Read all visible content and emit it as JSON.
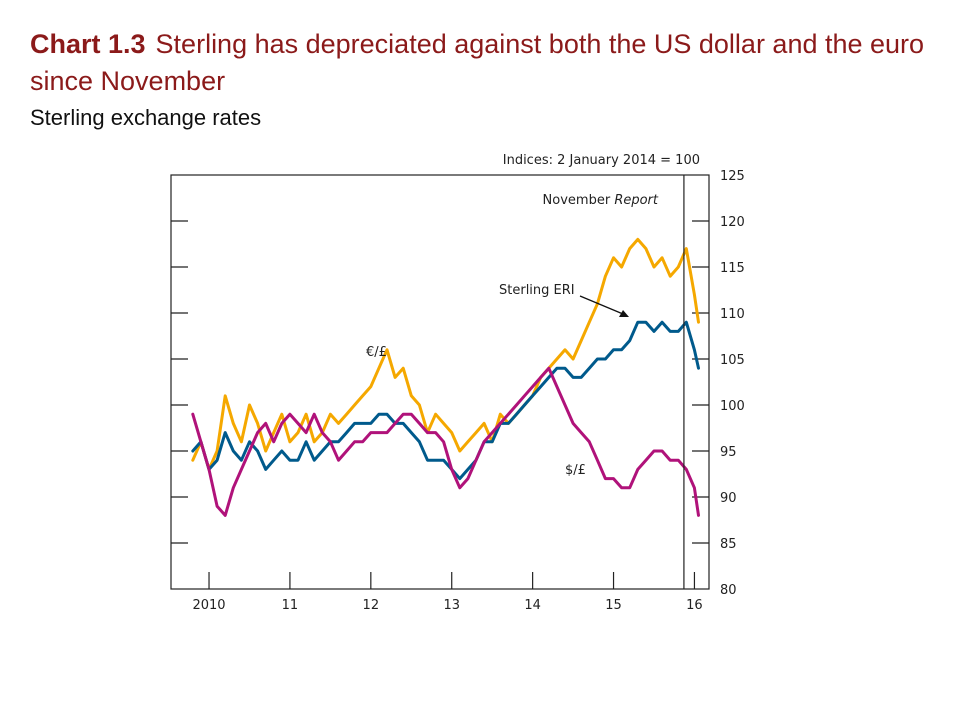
{
  "header": {
    "chart_number": "Chart 1.3",
    "title": "Sterling has depreciated against both the US dollar and the euro since November",
    "subtitle": "Sterling exchange rates"
  },
  "colors": {
    "euro": "#f5a800",
    "eri": "#005a8c",
    "dollar": "#b0127a",
    "title": "#8b1a1a"
  },
  "chart_data": {
    "type": "line",
    "units_label": "Indices: 2 January 2014 = 100",
    "x_ticks": [
      "2010",
      "11",
      "12",
      "13",
      "14",
      "15",
      "16"
    ],
    "x_tick_values": [
      2010,
      2011,
      2012,
      2013,
      2014,
      2015,
      2016
    ],
    "xlim": [
      2009.53,
      2016.18
    ],
    "ylim": [
      80,
      125
    ],
    "y_ticks": [
      125,
      120,
      115,
      110,
      105,
      100,
      95,
      90,
      85,
      80
    ],
    "y_axis_side": "right",
    "vline": {
      "x": 2015.87,
      "label_prefix": "November",
      "label_italic": "Report"
    },
    "annotations": [
      {
        "text": "€/£",
        "series": "euro"
      },
      {
        "text": "Sterling ERI",
        "series": "eri"
      },
      {
        "text": "$/£",
        "series": "dollar"
      }
    ],
    "series": [
      {
        "key": "euro",
        "name": "€/£",
        "x": [
          2009.8,
          2009.9,
          2010.0,
          2010.1,
          2010.2,
          2010.3,
          2010.4,
          2010.5,
          2010.6,
          2010.7,
          2010.8,
          2010.9,
          2011.0,
          2011.1,
          2011.2,
          2011.3,
          2011.4,
          2011.5,
          2011.6,
          2011.7,
          2011.8,
          2011.9,
          2012.0,
          2012.1,
          2012.2,
          2012.3,
          2012.4,
          2012.5,
          2012.6,
          2012.7,
          2012.8,
          2012.9,
          2013.0,
          2013.1,
          2013.2,
          2013.3,
          2013.4,
          2013.5,
          2013.6,
          2013.7,
          2013.8,
          2013.9,
          2014.0,
          2014.1,
          2014.2,
          2014.3,
          2014.4,
          2014.5,
          2014.6,
          2014.7,
          2014.8,
          2014.9,
          2015.0,
          2015.1,
          2015.2,
          2015.3,
          2015.4,
          2015.5,
          2015.6,
          2015.7,
          2015.8,
          2015.9,
          2016.0,
          2016.05
        ],
        "values": [
          94,
          96,
          93,
          95,
          101,
          98,
          96,
          100,
          98,
          95,
          97,
          99,
          96,
          97,
          99,
          96,
          97,
          99,
          98,
          99,
          100,
          101,
          102,
          104,
          106,
          103,
          104,
          101,
          100,
          97,
          99,
          98,
          97,
          95,
          96,
          97,
          98,
          96,
          99,
          98,
          99,
          100,
          101,
          103,
          104,
          105,
          106,
          105,
          107,
          109,
          111,
          114,
          116,
          115,
          117,
          118,
          117,
          115,
          116,
          114,
          115,
          117,
          112,
          109
        ]
      },
      {
        "key": "eri",
        "name": "Sterling ERI",
        "x": [
          2009.8,
          2009.9,
          2010.0,
          2010.1,
          2010.2,
          2010.3,
          2010.4,
          2010.5,
          2010.6,
          2010.7,
          2010.8,
          2010.9,
          2011.0,
          2011.1,
          2011.2,
          2011.3,
          2011.4,
          2011.5,
          2011.6,
          2011.7,
          2011.8,
          2011.9,
          2012.0,
          2012.1,
          2012.2,
          2012.3,
          2012.4,
          2012.5,
          2012.6,
          2012.7,
          2012.8,
          2012.9,
          2013.0,
          2013.1,
          2013.2,
          2013.3,
          2013.4,
          2013.5,
          2013.6,
          2013.7,
          2013.8,
          2013.9,
          2014.0,
          2014.1,
          2014.2,
          2014.3,
          2014.4,
          2014.5,
          2014.6,
          2014.7,
          2014.8,
          2014.9,
          2015.0,
          2015.1,
          2015.2,
          2015.3,
          2015.4,
          2015.5,
          2015.6,
          2015.7,
          2015.8,
          2015.9,
          2016.0,
          2016.05
        ],
        "values": [
          95,
          96,
          93,
          94,
          97,
          95,
          94,
          96,
          95,
          93,
          94,
          95,
          94,
          94,
          96,
          94,
          95,
          96,
          96,
          97,
          98,
          98,
          98,
          99,
          99,
          98,
          98,
          97,
          96,
          94,
          94,
          94,
          93,
          92,
          93,
          94,
          96,
          96,
          98,
          98,
          99,
          100,
          101,
          102,
          103,
          104,
          104,
          103,
          103,
          104,
          105,
          105,
          106,
          106,
          107,
          109,
          109,
          108,
          109,
          108,
          108,
          109,
          106,
          104
        ]
      },
      {
        "key": "dollar",
        "name": "$/£",
        "x": [
          2009.8,
          2009.9,
          2010.0,
          2010.1,
          2010.2,
          2010.3,
          2010.4,
          2010.5,
          2010.6,
          2010.7,
          2010.8,
          2010.9,
          2011.0,
          2011.1,
          2011.2,
          2011.3,
          2011.4,
          2011.5,
          2011.6,
          2011.7,
          2011.8,
          2011.9,
          2012.0,
          2012.1,
          2012.2,
          2012.3,
          2012.4,
          2012.5,
          2012.6,
          2012.7,
          2012.8,
          2012.9,
          2013.0,
          2013.1,
          2013.2,
          2013.3,
          2013.4,
          2013.5,
          2013.6,
          2013.7,
          2013.8,
          2013.9,
          2014.0,
          2014.1,
          2014.2,
          2014.3,
          2014.4,
          2014.5,
          2014.6,
          2014.7,
          2014.8,
          2014.9,
          2015.0,
          2015.1,
          2015.2,
          2015.3,
          2015.4,
          2015.5,
          2015.6,
          2015.7,
          2015.8,
          2015.9,
          2016.0,
          2016.05
        ],
        "values": [
          99,
          96,
          93,
          89,
          88,
          91,
          93,
          95,
          97,
          98,
          96,
          98,
          99,
          98,
          97,
          99,
          97,
          96,
          94,
          95,
          96,
          96,
          97,
          97,
          97,
          98,
          99,
          99,
          98,
          97,
          97,
          96,
          93,
          91,
          92,
          94,
          96,
          97,
          98,
          99,
          100,
          101,
          102,
          103,
          104,
          102,
          100,
          98,
          97,
          96,
          94,
          92,
          92,
          91,
          91,
          93,
          94,
          95,
          95,
          94,
          94,
          93,
          91,
          88
        ]
      }
    ]
  }
}
